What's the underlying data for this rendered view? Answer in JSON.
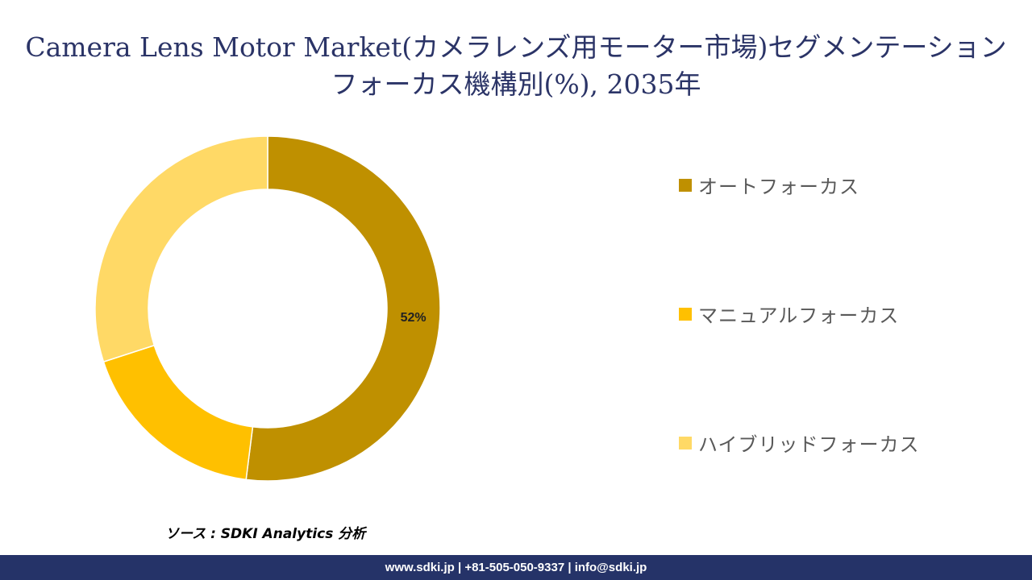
{
  "title": "Camera Lens Motor Market(カメラレンズ用モーター市場)セグメンテーションフォーカス機構別(%), 2035年",
  "source_text": "ソース : SDKI Analytics 分析",
  "footer_text": "www.sdki.jp | +81-505-050-9337 | info@sdki.jp",
  "chart_data": {
    "type": "pie",
    "donut": true,
    "categories": [
      "オートフォーカス",
      "マニュアルフォーカス",
      "ハイブリッドフォーカス"
    ],
    "values": [
      52,
      18,
      30
    ],
    "colors": [
      "#bf9000",
      "#ffc000",
      "#ffd966"
    ],
    "data_labels": [
      "52%",
      "",
      ""
    ],
    "legend_position": "right"
  }
}
